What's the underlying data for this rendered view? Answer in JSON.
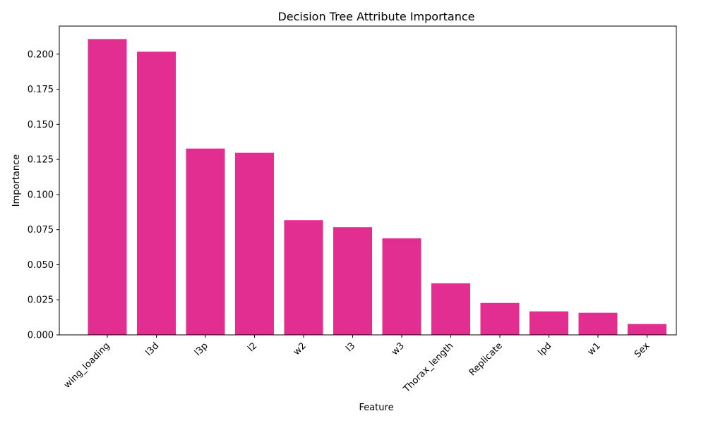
{
  "chart_data": {
    "type": "bar",
    "title": "Decision Tree Attribute Importance",
    "xlabel": "Feature",
    "ylabel": "Importance",
    "categories": [
      "wing_loading",
      "l3d",
      "l3p",
      "l2",
      "w2",
      "l3",
      "w3",
      "Thorax_length",
      "Replicate",
      "lpd",
      "w1",
      "Sex"
    ],
    "values": [
      0.211,
      0.202,
      0.133,
      0.13,
      0.082,
      0.077,
      0.069,
      0.037,
      0.023,
      0.017,
      0.016,
      0.008
    ],
    "ylim": [
      0,
      0.22
    ],
    "yticks": [
      0.0,
      0.025,
      0.05,
      0.075,
      0.1,
      0.125,
      0.15,
      0.175,
      0.2
    ],
    "ytick_labels": [
      "0.000",
      "0.025",
      "0.050",
      "0.075",
      "0.100",
      "0.125",
      "0.150",
      "0.175",
      "0.200"
    ],
    "bar_color": "#e22d91",
    "grid": false
  }
}
